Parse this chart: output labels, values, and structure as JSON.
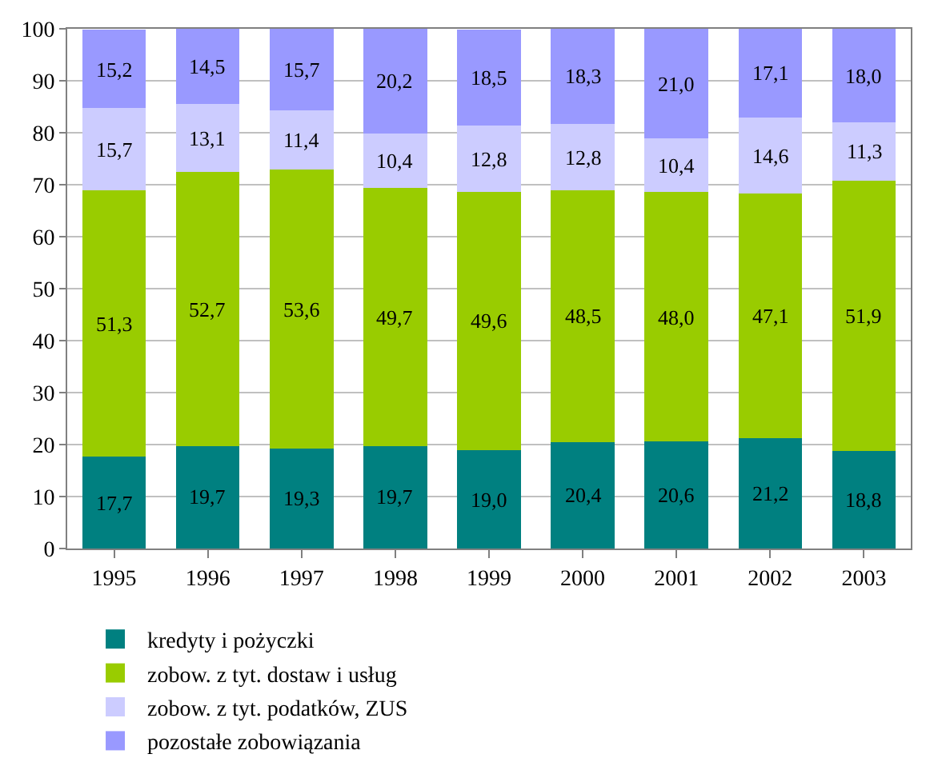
{
  "chart_data": {
    "type": "bar",
    "stacked": true,
    "categories": [
      "1995",
      "1996",
      "1997",
      "1998",
      "1999",
      "2000",
      "2001",
      "2002",
      "2003"
    ],
    "series": [
      {
        "name": "kredyty i pożyczki",
        "color": "#008080",
        "values": [
          17.7,
          19.7,
          19.3,
          19.7,
          19.0,
          20.4,
          20.6,
          21.2,
          18.8
        ],
        "value_labels": [
          "17,7",
          "19,7",
          "19,3",
          "19,7",
          "19,0",
          "20,4",
          "20,6",
          "21,2",
          "18,8"
        ]
      },
      {
        "name": "zobow. z tyt. dostaw i usług",
        "color": "#99cc00",
        "values": [
          51.3,
          52.7,
          53.6,
          49.7,
          49.6,
          48.5,
          48.0,
          47.1,
          51.9
        ],
        "value_labels": [
          "51,3",
          "52,7",
          "53,6",
          "49,7",
          "49,6",
          "48,5",
          "48,0",
          "47,1",
          "51,9"
        ]
      },
      {
        "name": "zobow. z tyt. podatków, ZUS",
        "color": "#ccccff",
        "values": [
          15.7,
          13.1,
          11.4,
          10.4,
          12.8,
          12.8,
          10.4,
          14.6,
          11.3
        ],
        "value_labels": [
          "15,7",
          "13,1",
          "11,4",
          "10,4",
          "12,8",
          "12,8",
          "10,4",
          "14,6",
          "11,3"
        ]
      },
      {
        "name": "pozostałe zobowiązania",
        "color": "#9999ff",
        "values": [
          15.2,
          14.5,
          15.7,
          20.2,
          18.5,
          18.3,
          21.0,
          17.1,
          18.0
        ],
        "value_labels": [
          "15,2",
          "14,5",
          "15,7",
          "20,2",
          "18,5",
          "18,3",
          "21,0",
          "17,1",
          "18,0"
        ]
      }
    ],
    "ylim": [
      0,
      100
    ],
    "yticks": [
      0,
      10,
      20,
      30,
      40,
      50,
      60,
      70,
      80,
      90,
      100
    ],
    "grid": "y",
    "legend": "bottom"
  }
}
